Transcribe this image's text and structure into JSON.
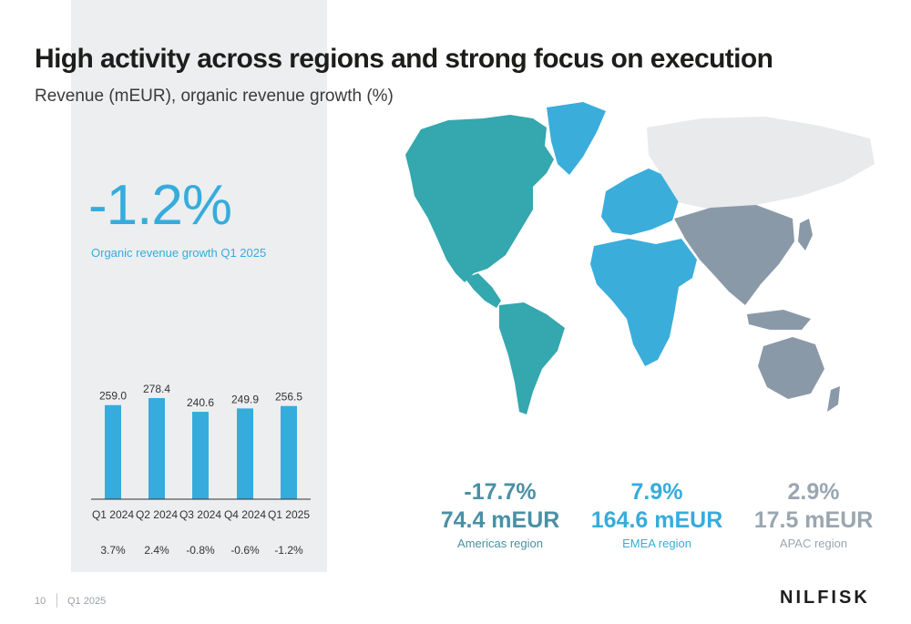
{
  "title": "High activity across regions and strong focus on execution",
  "subtitle": "Revenue (mEUR), organic revenue growth (%)",
  "kpi": {
    "value": "-1.2%",
    "caption": "Organic revenue growth Q1 2025"
  },
  "chart_data": {
    "type": "bar",
    "categories": [
      "Q1 2024",
      "Q2 2024",
      "Q3 2024",
      "Q4 2024",
      "Q1 2025"
    ],
    "values": [
      259.0,
      278.4,
      240.6,
      249.9,
      256.5
    ],
    "value_labels": [
      "259.0",
      "278.4",
      "240.6",
      "249.9",
      "256.5"
    ],
    "growth_labels": [
      "3.7%",
      "2.4%",
      "-0.8%",
      "-0.6%",
      "-1.2%"
    ],
    "ylim": [
      0,
      278.4
    ],
    "color": "#36acdc",
    "grid": false,
    "xlabel": "",
    "ylabel": ""
  },
  "regions": [
    {
      "growth": "-17.7%",
      "revenue": "74.4 mEUR",
      "name": "Americas region",
      "color": "#4a90a4",
      "caption_color": "#4a90a4"
    },
    {
      "growth": "7.9%",
      "revenue": "164.6 mEUR",
      "name": "EMEA region",
      "color": "#36acdc",
      "caption_color": "#36acdc"
    },
    {
      "growth": "2.9%",
      "revenue": "17.5 mEUR",
      "name": "APAC region",
      "color": "#9aa6b0",
      "caption_color": "#9aa6b0"
    }
  ],
  "map_colors": {
    "americas": "#35a7ae",
    "emea": "#3aaddb",
    "apac": "#8a99a7",
    "other": "#e9eaeb"
  },
  "footer": {
    "page": "10",
    "period": "Q1 2025",
    "logo": "NILFISK"
  }
}
